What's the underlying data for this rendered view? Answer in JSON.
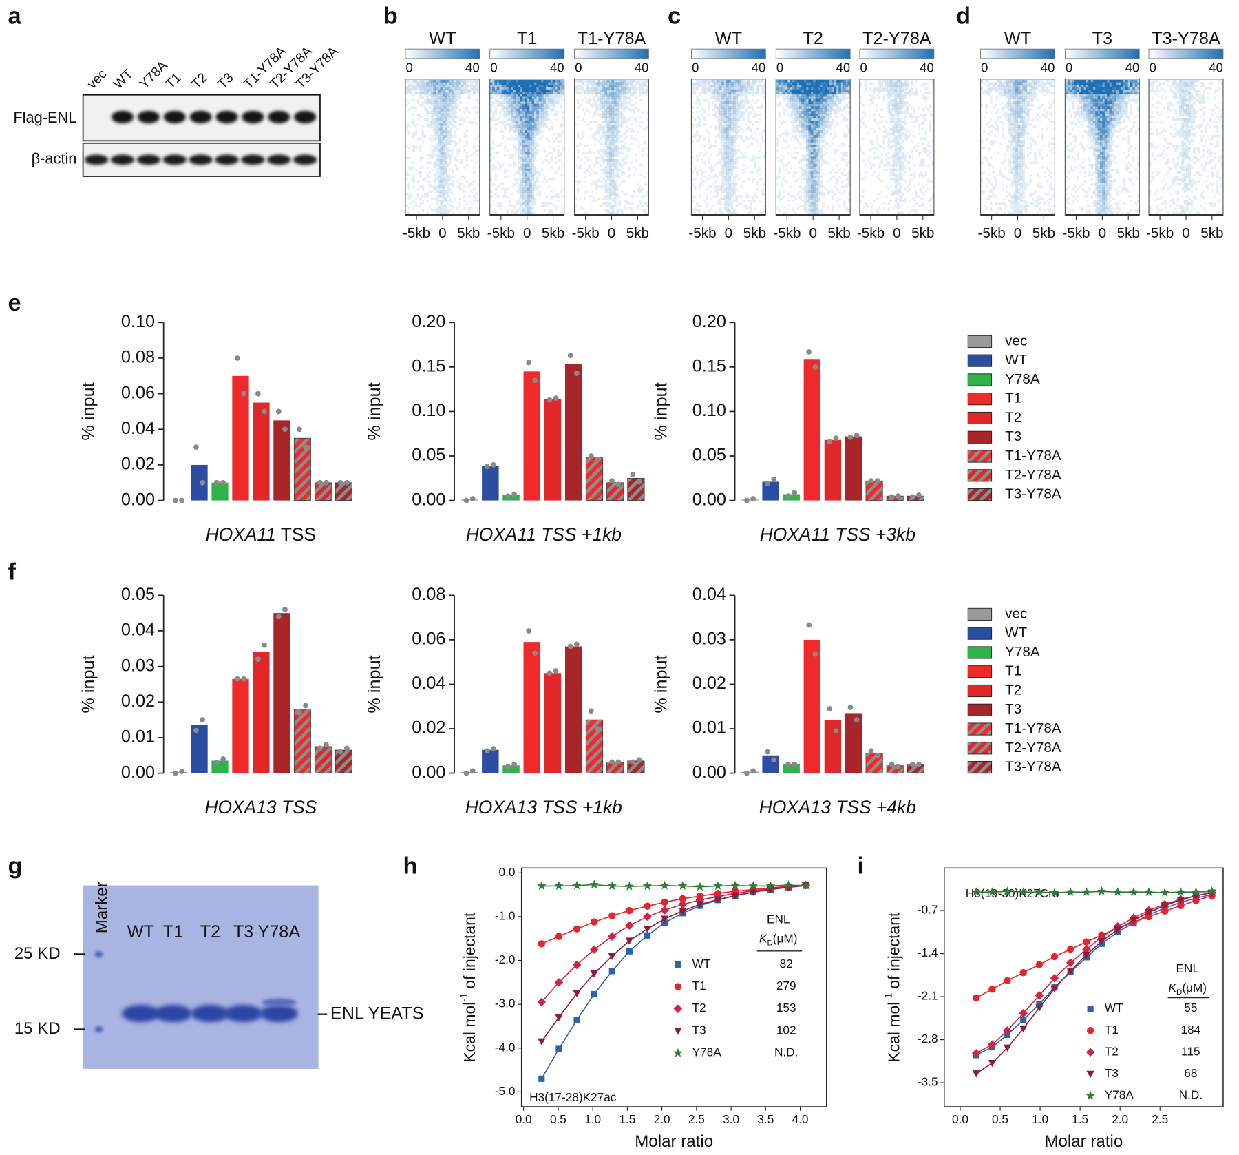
{
  "panel_labels": [
    "a",
    "b",
    "c",
    "d",
    "e",
    "f",
    "g",
    "h",
    "i"
  ],
  "blot": {
    "lanes": [
      "vec",
      "WT",
      "Y78A",
      "T1",
      "T2",
      "T3",
      "T1-Y78A",
      "T2-Y78A",
      "T3-Y78A"
    ],
    "rows": [
      "Flag-ENL",
      "β-actin"
    ]
  },
  "heatmaps": [
    {
      "columns": [
        "WT",
        "T1",
        "T1-Y78A"
      ]
    },
    {
      "columns": [
        "WT",
        "T2",
        "T2-Y78A"
      ]
    },
    {
      "columns": [
        "WT",
        "T3",
        "T3-Y78A"
      ]
    }
  ],
  "heatmap_scale": [
    0,
    40
  ],
  "heatmap_xticks": [
    "-5kb",
    "0",
    "5kb"
  ],
  "bar_legend": {
    "names": [
      "vec",
      "WT",
      "Y78A",
      "T1",
      "T2",
      "T3",
      "T1-Y78A",
      "T2-Y78A",
      "T3-Y78A"
    ],
    "colors": [
      "#9a9a9a",
      "#2b4ea2",
      "#2db34a",
      "#ee2a2a",
      "#e02828",
      "#a8262a",
      "#ee2a2a",
      "#e02828",
      "#a8262a"
    ],
    "hatched": [
      false,
      false,
      false,
      false,
      false,
      false,
      true,
      true,
      true
    ]
  },
  "gel": {
    "marker": "Marker",
    "lanes": [
      "WT",
      "T1",
      "T2",
      "T3",
      "Y78A"
    ],
    "sizes": [
      "25 KD",
      "15 KD"
    ],
    "band": "ENL YEATS"
  },
  "chart_data": [
    {
      "type": "bar",
      "ylabel": "% input",
      "xlabel": [
        "HOXA11",
        "TSS"
      ],
      "xlabel_italic": [
        true,
        false
      ],
      "ylim": [
        0,
        0.1
      ],
      "yticks": [
        {
          "value": 0,
          "label": "0.00"
        },
        0.02,
        0.04,
        0.06,
        0.08,
        {
          "value": 0.1,
          "label": "0.10"
        }
      ],
      "values": [
        0,
        0.02,
        0.01,
        0.07,
        0.055,
        0.045,
        0.035,
        0.01,
        0.01
      ],
      "replicates": [
        [
          0,
          0
        ],
        [
          0.03,
          0.01
        ],
        [
          0.01,
          0.01
        ],
        [
          0.08,
          0.06
        ],
        [
          0.06,
          0.05
        ],
        [
          0.05,
          0.04
        ],
        [
          0.04,
          0.03
        ],
        [
          0.01,
          0.01
        ],
        [
          0.01,
          0.01
        ]
      ]
    },
    {
      "type": "bar",
      "ylabel": "% input",
      "xlabel": [
        "HOXA11 TSS +1kb"
      ],
      "xlabel_italic": [
        true
      ],
      "ylim": [
        0,
        0.2
      ],
      "yticks": [
        {
          "value": 0,
          "label": "0.00"
        },
        0.05,
        {
          "value": 0.1,
          "label": "0.10"
        },
        0.15,
        {
          "value": 0.2,
          "label": "0.20"
        }
      ],
      "values": [
        0.001,
        0.039,
        0.006,
        0.145,
        0.114,
        0.153,
        0.048,
        0.02,
        0.025
      ],
      "replicates": [
        [
          0,
          0.002
        ],
        [
          0.038,
          0.04
        ],
        [
          0.005,
          0.007
        ],
        [
          0.155,
          0.135
        ],
        [
          0.113,
          0.115
        ],
        [
          0.163,
          0.143
        ],
        [
          0.05,
          0.046
        ],
        [
          0.022,
          0.018
        ],
        [
          0.029,
          0.021
        ]
      ]
    },
    {
      "type": "bar",
      "ylabel": "% input",
      "xlabel": [
        "HOXA11 TSS +3kb"
      ],
      "xlabel_italic": [
        true
      ],
      "ylim": [
        0,
        0.2
      ],
      "yticks": [
        {
          "value": 0,
          "label": "0.00"
        },
        0.05,
        {
          "value": 0.1,
          "label": "0.10"
        },
        0.15,
        {
          "value": 0.2,
          "label": "0.20"
        }
      ],
      "values": [
        0.001,
        0.021,
        0.007,
        0.159,
        0.068,
        0.072,
        0.022,
        0.005,
        0.005
      ],
      "replicates": [
        [
          0,
          0.002
        ],
        [
          0.019,
          0.024
        ],
        [
          0.005,
          0.009
        ],
        [
          0.167,
          0.15
        ],
        [
          0.066,
          0.07
        ],
        [
          0.071,
          0.073
        ],
        [
          0.022,
          0.022
        ],
        [
          0.004,
          0.005
        ],
        [
          0.004,
          0.006
        ]
      ]
    },
    {
      "type": "bar",
      "ylabel": "% input",
      "xlabel": [
        "HOXA13 TSS"
      ],
      "xlabel_italic": [
        true
      ],
      "ylim": [
        0,
        0.05
      ],
      "yticks": [
        {
          "value": 0,
          "label": "0.00"
        },
        0.01,
        0.02,
        0.03,
        0.04,
        0.05
      ],
      "values": [
        0.0003,
        0.0135,
        0.0035,
        0.0265,
        0.034,
        0.045,
        0.018,
        0.0075,
        0.0065
      ],
      "replicates": [
        [
          0,
          0.0005
        ],
        [
          0.012,
          0.015
        ],
        [
          0.003,
          0.004
        ],
        [
          0.0265,
          0.0265
        ],
        [
          0.032,
          0.036
        ],
        [
          0.044,
          0.046
        ],
        [
          0.017,
          0.019
        ],
        [
          0.007,
          0.008
        ],
        [
          0.006,
          0.007
        ]
      ]
    },
    {
      "type": "bar",
      "ylabel": "% input",
      "xlabel": [
        "HOXA13 TSS +1kb"
      ],
      "xlabel_italic": [
        true
      ],
      "ylim": [
        0,
        0.08
      ],
      "yticks": [
        {
          "value": 0,
          "label": "0.00"
        },
        0.02,
        0.04,
        0.06,
        0.08
      ],
      "values": [
        0.0005,
        0.0105,
        0.0035,
        0.059,
        0.045,
        0.057,
        0.024,
        0.005,
        0.0055
      ],
      "replicates": [
        [
          0,
          0.001
        ],
        [
          0.01,
          0.011
        ],
        [
          0.003,
          0.004
        ],
        [
          0.064,
          0.054
        ],
        [
          0.045,
          0.046
        ],
        [
          0.057,
          0.058
        ],
        [
          0.028,
          0.02
        ],
        [
          0.005,
          0.005
        ],
        [
          0.005,
          0.006
        ]
      ]
    },
    {
      "type": "bar",
      "ylabel": "% input",
      "xlabel": [
        "HOXA13 TSS +4kb"
      ],
      "xlabel_italic": [
        true
      ],
      "ylim": [
        0,
        0.04
      ],
      "yticks": [
        {
          "value": 0,
          "label": "0.00"
        },
        0.01,
        0.02,
        0.03,
        0.04
      ],
      "values": [
        0.0003,
        0.004,
        0.002,
        0.03,
        0.012,
        0.0135,
        0.0045,
        0.0017,
        0.002
      ],
      "replicates": [
        [
          0,
          0.0005
        ],
        [
          0.0048,
          0.003
        ],
        [
          0.002,
          0.002
        ],
        [
          0.0333,
          0.0268
        ],
        [
          0.0145,
          0.0095
        ],
        [
          0.0148,
          0.012
        ],
        [
          0.005,
          0.004
        ],
        [
          0.002,
          0.0015
        ],
        [
          0.002,
          0.002
        ]
      ]
    },
    {
      "type": "scatter",
      "annotation": "H3(17-28)K27ac",
      "xlabel": "Molar ratio",
      "ylabel": [
        "Kcal mol",
        "-1",
        "of injectant"
      ],
      "legend_title": "ENL",
      "kd_label": [
        "K",
        "D",
        "(μM)"
      ],
      "xlim": [
        -0.03,
        4.38
      ],
      "ylim": [
        -5.34,
        0.11
      ],
      "xticks": [
        {
          "value": 0,
          "label": "0.0"
        },
        0.5,
        {
          "value": 1,
          "label": "1.0"
        },
        1.5,
        {
          "value": 2,
          "label": "2.0"
        },
        2.5,
        {
          "value": 3,
          "label": "3.0"
        },
        3.5,
        {
          "value": 4,
          "label": "4.0"
        }
      ],
      "yticks": [
        {
          "value": -5,
          "label": "-5.0"
        },
        {
          "value": -4,
          "label": "-4.0"
        },
        {
          "value": -3,
          "label": "-3.0"
        },
        {
          "value": -2,
          "label": "-2.0"
        },
        {
          "value": -1,
          "label": "-1.0"
        },
        {
          "value": 0,
          "label": "0.0"
        }
      ],
      "series": [
        {
          "name": "WT",
          "color": "#2c64ad",
          "marker": "square",
          "kd": 82,
          "x": [
            0.26,
            0.51,
            0.77,
            1.02,
            1.28,
            1.53,
            1.79,
            2.04,
            2.3,
            2.55,
            2.81,
            3.06,
            3.32,
            3.57,
            3.83,
            4.08
          ],
          "y": [
            -4.7,
            -4.02,
            -3.36,
            -2.77,
            -2.24,
            -1.79,
            -1.43,
            -1.14,
            -0.92,
            -0.75,
            -0.62,
            -0.52,
            -0.44,
            -0.38,
            -0.33,
            -0.29
          ]
        },
        {
          "name": "T1",
          "color": "#e8232a",
          "marker": "circle",
          "kd": 279,
          "x": [
            0.26,
            0.51,
            0.77,
            1.02,
            1.28,
            1.53,
            1.79,
            2.04,
            2.3,
            2.55,
            2.81,
            3.06,
            3.32,
            3.57,
            3.83,
            4.08
          ],
          "y": [
            -1.62,
            -1.45,
            -1.28,
            -1.12,
            -0.98,
            -0.86,
            -0.76,
            -0.67,
            -0.59,
            -0.53,
            -0.47,
            -0.42,
            -0.38,
            -0.34,
            -0.31,
            -0.28
          ]
        },
        {
          "name": "T2",
          "color": "#d2253f",
          "marker": "diamond",
          "kd": 153,
          "x": [
            0.26,
            0.51,
            0.77,
            1.02,
            1.28,
            1.53,
            1.79,
            2.04,
            2.3,
            2.55,
            2.81,
            3.06,
            3.32,
            3.57,
            3.83,
            4.08
          ],
          "y": [
            -2.95,
            -2.5,
            -2.1,
            -1.75,
            -1.45,
            -1.2,
            -1.0,
            -0.85,
            -0.72,
            -0.62,
            -0.54,
            -0.47,
            -0.41,
            -0.36,
            -0.32,
            -0.28
          ]
        },
        {
          "name": "T3",
          "color": "#8c1c3c",
          "marker": "triangle-down",
          "kd": 102,
          "x": [
            0.26,
            0.51,
            0.77,
            1.02,
            1.28,
            1.53,
            1.79,
            2.04,
            2.3,
            2.55,
            2.81,
            3.06,
            3.32,
            3.57,
            3.83,
            4.08
          ],
          "y": [
            -3.85,
            -3.3,
            -2.75,
            -2.3,
            -1.9,
            -1.55,
            -1.28,
            -1.05,
            -0.87,
            -0.72,
            -0.61,
            -0.52,
            -0.44,
            -0.38,
            -0.33,
            -0.29
          ]
        },
        {
          "name": "Y78A",
          "color": "#2e7d32",
          "marker": "star",
          "kd": "N.D.",
          "x": [
            0.26,
            0.51,
            0.77,
            1.02,
            1.28,
            1.53,
            1.79,
            2.04,
            2.3,
            2.55,
            2.81,
            3.06,
            3.32,
            3.57,
            3.83,
            4.08
          ],
          "y": [
            -0.3,
            -0.3,
            -0.29,
            -0.27,
            -0.3,
            -0.31,
            -0.3,
            -0.29,
            -0.3,
            -0.32,
            -0.3,
            -0.29,
            -0.3,
            -0.3,
            -0.28,
            -0.29
          ]
        }
      ]
    },
    {
      "type": "scatter",
      "annotation": "H3(19-30)K27Cro",
      "xlabel": "Molar ratio",
      "ylabel": [
        "Kcal mol",
        "-1",
        "of injectant"
      ],
      "legend_title": "ENL",
      "kd_label": [
        "K",
        "D",
        "(μM)"
      ],
      "xlim": [
        -0.2,
        3.29
      ],
      "ylim": [
        -3.89,
        -0.01
      ],
      "xticks": [
        {
          "value": 0,
          "label": "0.0"
        },
        0.5,
        {
          "value": 1,
          "label": "1.0"
        },
        1.5,
        {
          "value": 2,
          "label": "2.0"
        },
        2.5
      ],
      "yticks": [
        -3.5,
        -2.8,
        -2.1,
        -1.4,
        -0.7
      ],
      "series": [
        {
          "name": "WT",
          "color": "#2c64ad",
          "marker": "square",
          "kd": 55,
          "x": [
            0.2,
            0.4,
            0.59,
            0.79,
            0.99,
            1.18,
            1.38,
            1.58,
            1.77,
            1.97,
            2.17,
            2.36,
            2.56,
            2.76,
            2.95,
            3.15
          ],
          "y": [
            -3.05,
            -2.92,
            -2.72,
            -2.48,
            -2.22,
            -1.95,
            -1.7,
            -1.46,
            -1.24,
            -1.05,
            -0.9,
            -0.77,
            -0.66,
            -0.57,
            -0.5,
            -0.44
          ]
        },
        {
          "name": "T1",
          "color": "#e8232a",
          "marker": "circle",
          "kd": 184,
          "x": [
            0.2,
            0.4,
            0.59,
            0.79,
            0.99,
            1.18,
            1.38,
            1.58,
            1.77,
            1.97,
            2.17,
            2.36,
            2.56,
            2.76,
            2.95,
            3.15
          ],
          "y": [
            -2.12,
            -1.98,
            -1.84,
            -1.71,
            -1.58,
            -1.45,
            -1.33,
            -1.21,
            -1.1,
            -0.99,
            -0.89,
            -0.8,
            -0.71,
            -0.62,
            -0.54,
            -0.46
          ]
        },
        {
          "name": "T2",
          "color": "#d2253f",
          "marker": "diamond",
          "kd": 115,
          "x": [
            0.2,
            0.4,
            0.59,
            0.79,
            0.99,
            1.18,
            1.38,
            1.58,
            1.77,
            1.97,
            2.17,
            2.36,
            2.56,
            2.76,
            2.95,
            3.15
          ],
          "y": [
            -3.02,
            -2.88,
            -2.65,
            -2.37,
            -2.08,
            -1.8,
            -1.55,
            -1.33,
            -1.13,
            -0.96,
            -0.82,
            -0.7,
            -0.6,
            -0.52,
            -0.46,
            -0.41
          ]
        },
        {
          "name": "T3",
          "color": "#8c1c3c",
          "marker": "triangle-down",
          "kd": 68,
          "x": [
            0.2,
            0.4,
            0.59,
            0.79,
            0.99,
            1.18,
            1.38,
            1.58,
            1.77,
            1.97,
            2.17,
            2.36,
            2.56,
            2.76,
            2.95,
            3.15
          ],
          "y": [
            -3.35,
            -3.18,
            -2.93,
            -2.62,
            -2.28,
            -1.97,
            -1.68,
            -1.42,
            -1.2,
            -1.01,
            -0.86,
            -0.73,
            -0.62,
            -0.53,
            -0.46,
            -0.41
          ]
        },
        {
          "name": "Y78A",
          "color": "#2e7d32",
          "marker": "star",
          "kd": "N.D.",
          "x": [
            0.2,
            0.4,
            0.59,
            0.79,
            0.99,
            1.18,
            1.38,
            1.58,
            1.77,
            1.97,
            2.17,
            2.36,
            2.56,
            2.76,
            2.95,
            3.15
          ],
          "y": [
            -0.4,
            -0.4,
            -0.39,
            -0.4,
            -0.4,
            -0.41,
            -0.4,
            -0.4,
            -0.39,
            -0.4,
            -0.4,
            -0.4,
            -0.41,
            -0.4,
            -0.4,
            -0.39
          ]
        }
      ]
    }
  ]
}
